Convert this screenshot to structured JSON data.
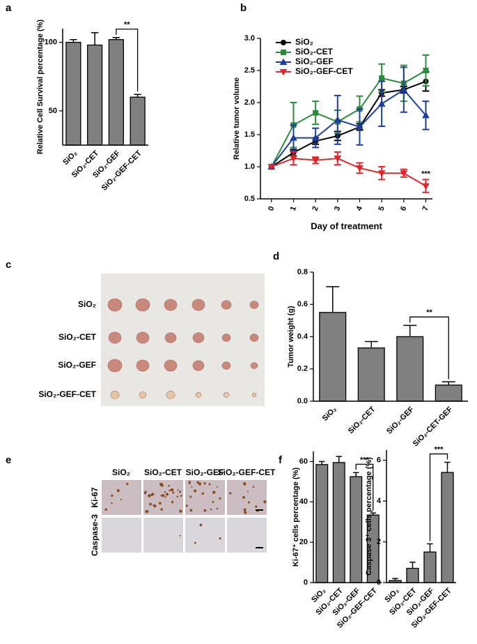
{
  "chart_data": [
    {
      "type": "bar",
      "panel": "a",
      "y_label": "Relative Cell Survival percentage (%)",
      "categories": [
        "SiO₂",
        "SiO₂-CET",
        "SiO₂-GEF",
        "SiO₂-GEF-CET"
      ],
      "values": [
        100,
        98,
        102,
        60
      ],
      "errors": [
        2,
        9,
        1.5,
        2
      ],
      "color": "#808080",
      "ylim": [
        25,
        110
      ],
      "yticks": [
        50,
        100
      ],
      "annotations": [
        {
          "text": "**"
        }
      ]
    },
    {
      "type": "line",
      "panel": "b",
      "x_label": "Day of treatment",
      "y_label": "Relative tumor volume",
      "x": [
        0,
        1,
        2,
        3,
        4,
        5,
        6,
        7
      ],
      "xlim": [
        -0.5,
        7.3
      ],
      "xticks": [
        0,
        1,
        2,
        3,
        4,
        5,
        6,
        7
      ],
      "ylim": [
        0.5,
        3.0
      ],
      "yticks": [
        0.5,
        {
          "value": 1,
          "label": "1.0"
        },
        1.5,
        {
          "value": 2,
          "label": "2.0"
        },
        2.5,
        {
          "value": 3,
          "label": "3.0"
        }
      ],
      "legend": "upper left",
      "series": [
        {
          "name": "SiO₂",
          "color": "#000000",
          "marker": "circle",
          "values": [
            1,
            1.22,
            1.4,
            1.48,
            1.62,
            2.15,
            2.2,
            2.33
          ],
          "errors": [
            0,
            0.05,
            0.05,
            0.07,
            0.05,
            0.05,
            0.05,
            0.15
          ]
        },
        {
          "name": "SiO₂-CET",
          "color": "#2e8b3e",
          "marker": "square",
          "values": [
            1,
            1.65,
            1.84,
            1.7,
            1.9,
            2.38,
            2.3,
            2.5
          ],
          "errors": [
            0,
            0.35,
            0.18,
            0.18,
            0.2,
            0.22,
            0.28,
            0.24
          ]
        },
        {
          "name": "SiO₂-GEF",
          "color": "#1f3e9a",
          "marker": "triangle",
          "values": [
            1,
            1.45,
            1.45,
            1.73,
            1.62,
            1.98,
            2.2,
            1.8
          ],
          "errors": [
            0,
            0.2,
            0.15,
            0.38,
            0.28,
            0.35,
            0.35,
            0.22
          ]
        },
        {
          "name": "SiO₂-GEF-CET",
          "color": "#e0262b",
          "marker": "triangle-down",
          "values": [
            1,
            1.13,
            1.1,
            1.13,
            0.98,
            0.9,
            0.9,
            0.7
          ],
          "errors": [
            0,
            0.1,
            0.05,
            0.1,
            0.08,
            0.1,
            0.06,
            0.1
          ]
        }
      ],
      "annotations": [
        {
          "text": "***"
        }
      ]
    },
    {
      "type": "bar",
      "panel": "d",
      "y_label": "Tumor weight (g)",
      "categories": [
        "SiO₂",
        "SiO₂-CET",
        "SiO₂-GEF",
        "SiO₂-CET-GEF"
      ],
      "values": [
        0.55,
        0.33,
        0.4,
        0.1
      ],
      "errors": [
        0.16,
        0.04,
        0.07,
        0.02
      ],
      "color": "#808080",
      "ylim": [
        0,
        0.8
      ],
      "yticks": [
        {
          "value": 0,
          "label": "0.0"
        },
        0.2,
        0.4,
        0.6,
        0.8
      ],
      "annotations": [
        {
          "text": "**"
        }
      ]
    },
    {
      "type": "bar",
      "panel": "f",
      "y_label": "Ki-67⁺ cells percentage (%)",
      "categories": [
        "SiO₂",
        "SiO₂-CET",
        "SiO₂-GEF",
        "SiO₂-GEF-CET"
      ],
      "values": [
        58.5,
        59.5,
        52.5,
        33.5
      ],
      "errors": [
        1.5,
        3,
        2,
        1
      ],
      "color": "#808080",
      "ylim": [
        0,
        65
      ],
      "yticks": [
        0,
        20,
        40,
        60
      ],
      "annotations": [
        {
          "text": "***"
        }
      ]
    },
    {
      "type": "bar",
      "y_label": "Caspase 3⁺ cells percentage (%)",
      "categories": [
        "SiO₂",
        "SiO₂-CET",
        "SiO₂-GEF",
        "SiO₂-GEF-CET"
      ],
      "values": [
        0.1,
        0.7,
        1.5,
        5.4
      ],
      "errors": [
        0.1,
        0.3,
        0.4,
        0.5
      ],
      "color": "#808080",
      "ylim": [
        0,
        6.5
      ],
      "yticks": [
        0,
        2,
        4,
        6
      ],
      "annotations": [
        {
          "text": "***"
        }
      ]
    }
  ],
  "figure": {
    "tumor_photo": {
      "panel": "c",
      "rows": [
        "SiO₂",
        "SiO₂-CET",
        "SiO₂-GEF",
        "SiO₂-GEF-CET"
      ]
    },
    "ihc": {
      "panel": "e",
      "columns": [
        "SiO₂",
        "SiO₂-CET",
        "SiO₂-GEF",
        "SiO₂-GEF-CET"
      ],
      "rows": [
        "Ki-67",
        "Caspase-3"
      ]
    }
  }
}
